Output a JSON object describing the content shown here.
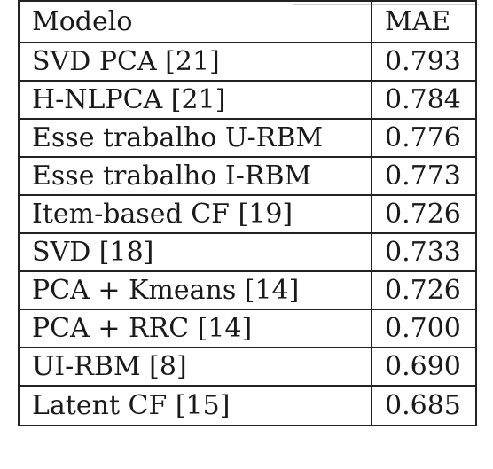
{
  "table": {
    "headers": [
      "Modelo",
      "MAE"
    ],
    "rows": [
      {
        "model": "SVD PCA [21]",
        "mae": "0.793",
        "bold": false
      },
      {
        "model": "H-NLPCA [21]",
        "mae": "0.784",
        "bold": false
      },
      {
        "model": "Esse trabalho U-RBM",
        "mae": "0.776",
        "bold": true
      },
      {
        "model": "Esse trabalho I-RBM",
        "mae": "0.773",
        "bold": true
      },
      {
        "model": "Item-based CF [19]",
        "mae": "0.726",
        "bold": false
      },
      {
        "model": "SVD [18]",
        "mae": "0.733",
        "bold": false
      },
      {
        "model": "PCA + Kmeans [14]",
        "mae": "0.726",
        "bold": false
      },
      {
        "model": "PCA + RRC [14]",
        "mae": "0.700",
        "bold": false
      },
      {
        "model": "UI-RBM [8]",
        "mae": "0.690",
        "bold": false
      },
      {
        "model": "Latent CF [15]",
        "mae": "0.685",
        "bold": false
      }
    ]
  }
}
